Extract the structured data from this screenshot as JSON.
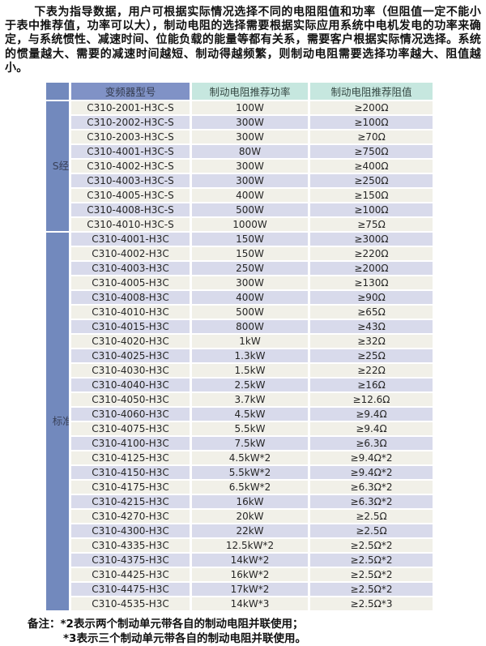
{
  "page": {
    "intro": "下表为指导数据，用户可根据实际情况选择不同的电阻阻值和功率（但阻值一定不能小于表中推荐值，功率可以大），制动电阻的选择需要根据实际应用系统中电机发电的功率来确定，与系统惯性、减速时间、位能负载的能量等都有关系，需要客户根据实际情况选择。系统的惯量越大、需要的减速时间越短、制动得越频繁，则制动电阻需要选择功率越大、阻值越小。",
    "notes": {
      "label": "备注：",
      "lines": [
        "*2表示两个制动单元带各自的制动电阻并联使用；",
        "*3表示三个制动单元带各自的制动电阻并联使用。"
      ]
    }
  },
  "table": {
    "headers": [
      "变频器型号",
      "制动电阻推荐功率",
      "制动电阻推荐阻值"
    ],
    "sections": [
      {
        "label": "S经济型",
        "rows": [
          [
            "C310-2001-H3C-S",
            "100W",
            "≥200Ω"
          ],
          [
            "C310-2002-H3C-S",
            "300W",
            "≥100Ω"
          ],
          [
            "C310-2003-H3C-S",
            "300W",
            "≥70Ω"
          ],
          [
            "C310-4001-H3C-S",
            "80W",
            "≥750Ω"
          ],
          [
            "C310-4002-H3C-S",
            "300W",
            "≥400Ω"
          ],
          [
            "C310-4003-H3C-S",
            "300W",
            "≥250Ω"
          ],
          [
            "C310-4005-H3C-S",
            "400W",
            "≥150Ω"
          ],
          [
            "C310-4008-H3C-S",
            "500W",
            "≥100Ω"
          ],
          [
            "C310-4010-H3C-S",
            "1000W",
            "≥75Ω"
          ]
        ]
      },
      {
        "label": "标准机",
        "rows": [
          [
            "C310-4001-H3C",
            "150W",
            "≥300Ω"
          ],
          [
            "C310-4002-H3C",
            "150W",
            "≥220Ω"
          ],
          [
            "C310-4003-H3C",
            "250W",
            "≥200Ω"
          ],
          [
            "C310-4005-H3C",
            "300W",
            "≥130Ω"
          ],
          [
            "C310-4008-H3C",
            "400W",
            "≥90Ω"
          ],
          [
            "C310-4010-H3C",
            "500W",
            "≥65Ω"
          ],
          [
            "C310-4015-H3C",
            "800W",
            "≥43Ω"
          ],
          [
            "C310-4020-H3C",
            "1kW",
            "≥32Ω"
          ],
          [
            "C310-4025-H3C",
            "1.3kW",
            "≥25Ω"
          ],
          [
            "C310-4030-H3C",
            "1.5kW",
            "≥22Ω"
          ],
          [
            "C310-4040-H3C",
            "2.5kW",
            "≥16Ω"
          ],
          [
            "C310-4050-H3C",
            "3.7kW",
            "≥12.6Ω"
          ],
          [
            "C310-4060-H3C",
            "4.5kW",
            "≥9.4Ω"
          ],
          [
            "C310-4075-H3C",
            "5.5kW",
            "≥9.4Ω"
          ],
          [
            "C310-4100-H3C",
            "7.5kW",
            "≥6.3Ω"
          ],
          [
            "C310-4125-H3C",
            "4.5kW*2",
            "≥9.4Ω*2"
          ],
          [
            "C310-4150-H3C",
            "5.5kW*2",
            "≥9.4Ω*2"
          ],
          [
            "C310-4175-H3C",
            "6.5kW*2",
            "≥6.3Ω*2"
          ],
          [
            "C310-4215-H3C",
            "16kW",
            "≥6.3Ω*2"
          ],
          [
            "C310-4270-H3C",
            "20kW",
            "≥2.5Ω"
          ],
          [
            "C310-4300-H3C",
            "22kW",
            "≥2.5Ω"
          ],
          [
            "C310-4335-H3C",
            "12.5kW*2",
            "≥2.5Ω*2"
          ],
          [
            "C310-4375-H3C",
            "14kW*2",
            "≥2.5Ω*2"
          ],
          [
            "C310-4425-H3C",
            "16kW*2",
            "≥2.5Ω*2"
          ],
          [
            "C310-4475-H3C",
            "17kW*2",
            "≥2.5Ω*2"
          ],
          [
            "C310-4535-H3C",
            "14kW*3",
            "≥2.5Ω*3"
          ]
        ]
      }
    ]
  },
  "colors": {
    "section_label_bg": "#7289BD",
    "model_header_bg": "#8092C6",
    "value_header_bg": "#C6E7DF",
    "row_cream": "#F1F0E8",
    "row_lavender": "#D8DAEB"
  }
}
